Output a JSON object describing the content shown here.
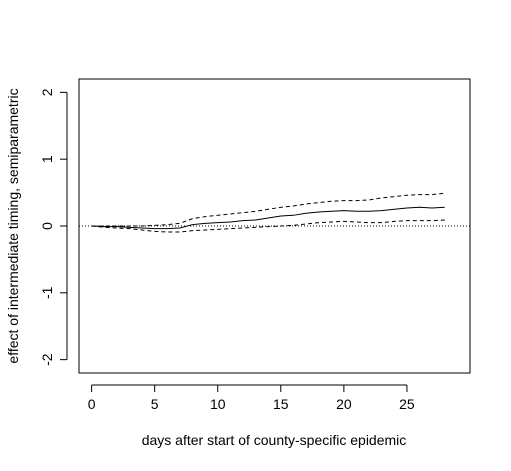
{
  "chart_data": {
    "type": "line",
    "title": "",
    "xlabel": "days after start of county-specific epidemic",
    "ylabel": "effect of intermediate timing, semiparametric",
    "xlim": [
      -1,
      30
    ],
    "ylim": [
      -2.2,
      2.2
    ],
    "x_ticks": [
      0,
      5,
      10,
      15,
      20,
      25
    ],
    "x_tick_labels": [
      "0",
      "5",
      "10",
      "15",
      "20",
      "25"
    ],
    "y_ticks": [
      -2,
      -1,
      0,
      1,
      2
    ],
    "y_tick_labels": [
      "-2",
      "-1",
      "0",
      "1",
      "2"
    ],
    "reference_line": {
      "y": 0,
      "style": "dotted"
    },
    "grid": false,
    "legend": "none",
    "x": [
      0,
      1,
      2,
      3,
      4,
      5,
      6,
      7,
      8,
      9,
      10,
      11,
      12,
      13,
      14,
      15,
      16,
      17,
      18,
      19,
      20,
      21,
      22,
      23,
      24,
      25,
      26,
      27,
      28
    ],
    "series": [
      {
        "style": "solid",
        "values": [
          0,
          -0.01,
          -0.01,
          -0.02,
          -0.03,
          -0.04,
          -0.04,
          -0.03,
          0.02,
          0.04,
          0.05,
          0.06,
          0.08,
          0.09,
          0.12,
          0.15,
          0.16,
          0.19,
          0.21,
          0.22,
          0.23,
          0.22,
          0.22,
          0.23,
          0.25,
          0.27,
          0.28,
          0.27,
          0.28
        ]
      },
      {
        "style": "dashed",
        "values": [
          0,
          0.0,
          0.0,
          0.0,
          0.0,
          0.01,
          0.02,
          0.04,
          0.11,
          0.14,
          0.16,
          0.18,
          0.2,
          0.22,
          0.25,
          0.28,
          0.3,
          0.33,
          0.35,
          0.37,
          0.38,
          0.38,
          0.39,
          0.42,
          0.44,
          0.46,
          0.47,
          0.47,
          0.49
        ]
      },
      {
        "style": "dashed",
        "values": [
          0,
          -0.02,
          -0.03,
          -0.04,
          -0.06,
          -0.08,
          -0.09,
          -0.09,
          -0.07,
          -0.06,
          -0.05,
          -0.04,
          -0.03,
          -0.02,
          -0.01,
          0.0,
          0.01,
          0.03,
          0.05,
          0.06,
          0.07,
          0.06,
          0.05,
          0.05,
          0.07,
          0.08,
          0.08,
          0.08,
          0.09
        ]
      }
    ]
  }
}
